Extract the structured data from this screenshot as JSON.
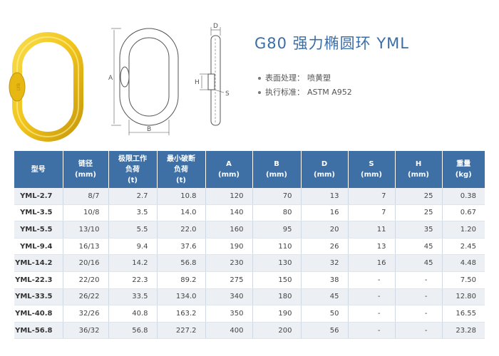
{
  "header": {
    "title": "G80 强力椭圆环 YML",
    "specs": [
      {
        "label": "表面处理：",
        "value": "喷黄塑"
      },
      {
        "label": "执行标准：",
        "value": "ASTM  A952"
      }
    ]
  },
  "drawing": {
    "dim_a": "A",
    "dim_b": "B",
    "dim_d": "D",
    "dim_h": "H",
    "dim_s": "S"
  },
  "table": {
    "headers": [
      {
        "line1": "型号",
        "line2": ""
      },
      {
        "line1": "链径",
        "line2": "(mm)"
      },
      {
        "line1": "极限工作",
        "line2": "负荷",
        "line3": "(t)"
      },
      {
        "line1": "最小破断",
        "line2": "负荷",
        "line3": "(t)"
      },
      {
        "line1": "A",
        "line2": "(mm)"
      },
      {
        "line1": "B",
        "line2": "(mm)"
      },
      {
        "line1": "D",
        "line2": "(mm)"
      },
      {
        "line1": "S",
        "line2": "(mm)"
      },
      {
        "line1": "H",
        "line2": "(mm)"
      },
      {
        "line1": "重量",
        "line2": "(kg)"
      }
    ],
    "rows": [
      [
        "YML-2.7",
        "8/7",
        "2.7",
        "10.8",
        "120",
        "70",
        "13",
        "7",
        "25",
        "0.38"
      ],
      [
        "YML-3.5",
        "10/8",
        "3.5",
        "14.0",
        "140",
        "80",
        "16",
        "7",
        "25",
        "0.67"
      ],
      [
        "YML-5.5",
        "13/10",
        "5.5",
        "22.0",
        "160",
        "95",
        "20",
        "11",
        "35",
        "1.20"
      ],
      [
        "YML-9.4",
        "16/13",
        "9.4",
        "37.6",
        "190",
        "110",
        "26",
        "13",
        "45",
        "2.45"
      ],
      [
        "YML-14.2",
        "20/16",
        "14.2",
        "56.8",
        "230",
        "130",
        "32",
        "16",
        "45",
        "4.48"
      ],
      [
        "YML-22.3",
        "22/20",
        "22.3",
        "89.2",
        "275",
        "150",
        "38",
        "-",
        "-",
        "7.50"
      ],
      [
        "YML-33.5",
        "26/22",
        "33.5",
        "134.0",
        "340",
        "180",
        "45",
        "-",
        "-",
        "12.80"
      ],
      [
        "YML-40.8",
        "32/26",
        "40.8",
        "163.2",
        "350",
        "190",
        "50",
        "-",
        "-",
        "16.55"
      ],
      [
        "YML-56.8",
        "36/32",
        "56.8",
        "227.2",
        "400",
        "200",
        "56",
        "-",
        "-",
        "23.28"
      ]
    ]
  },
  "colors": {
    "header_bg": "#3e6fa5",
    "title": "#3b6ea5",
    "ring_yellow": "#f2c81e",
    "row_alt": "#ecf0f5"
  },
  "icons": {
    "product": "yellow-master-link-photo",
    "front_view": "master-link-front-drawing",
    "side_view": "master-link-side-drawing"
  }
}
